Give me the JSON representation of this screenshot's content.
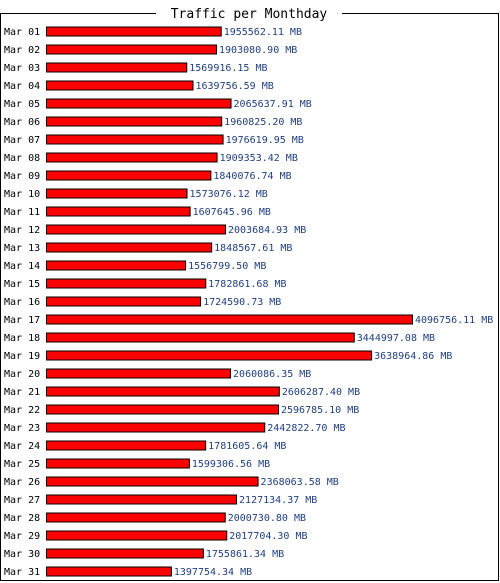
{
  "chart_data": {
    "type": "bar",
    "orientation": "horizontal",
    "title": "Traffic per Monthday",
    "unit": "MB",
    "categories": [
      "Mar 01",
      "Mar 02",
      "Mar 03",
      "Mar 04",
      "Mar 05",
      "Mar 06",
      "Mar 07",
      "Mar 08",
      "Mar 09",
      "Mar 10",
      "Mar 11",
      "Mar 12",
      "Mar 13",
      "Mar 14",
      "Mar 15",
      "Mar 16",
      "Mar 17",
      "Mar 18",
      "Mar 19",
      "Mar 20",
      "Mar 21",
      "Mar 22",
      "Mar 23",
      "Mar 24",
      "Mar 25",
      "Mar 26",
      "Mar 27",
      "Mar 28",
      "Mar 29",
      "Mar 30",
      "Mar 31"
    ],
    "values": [
      1955562.11,
      1903080.9,
      1569916.15,
      1639756.59,
      2065637.91,
      1960825.2,
      1976619.95,
      1909353.42,
      1840076.74,
      1573076.12,
      1607645.96,
      2003684.93,
      1848567.61,
      1556799.5,
      1782861.68,
      1724590.73,
      4096756.11,
      3444997.08,
      3638964.86,
      2060086.35,
      2606287.4,
      2596785.1,
      2442822.7,
      1781605.64,
      1599306.56,
      2368063.58,
      2127134.37,
      2000730.8,
      2017704.3,
      1755861.34,
      1397754.34
    ],
    "value_labels": [
      "1955562.11 MB",
      "1903080.90 MB",
      "1569916.15 MB",
      "1639756.59 MB",
      "2065637.91 MB",
      "1960825.20 MB",
      "1976619.95 MB",
      "1909353.42 MB",
      "1840076.74 MB",
      "1573076.12 MB",
      "1607645.96 MB",
      "2003684.93 MB",
      "1848567.61 MB",
      "1556799.50 MB",
      "1782861.68 MB",
      "1724590.73 MB",
      "4096756.11 MB",
      "3444997.08 MB",
      "3638964.86 MB",
      "2060086.35 MB",
      "2606287.40 MB",
      "2596785.10 MB",
      "2442822.70 MB",
      "1781605.64 MB",
      "1599306.56 MB",
      "2368063.58 MB",
      "2127134.37 MB",
      "2000730.80 MB",
      "2017704.30 MB",
      "1755861.34 MB",
      "1397754.34 MB"
    ],
    "xlim": [
      0,
      4096756.11
    ],
    "grid": false,
    "bar_color": "#ff0000",
    "label_color": "#1f3f7f"
  }
}
